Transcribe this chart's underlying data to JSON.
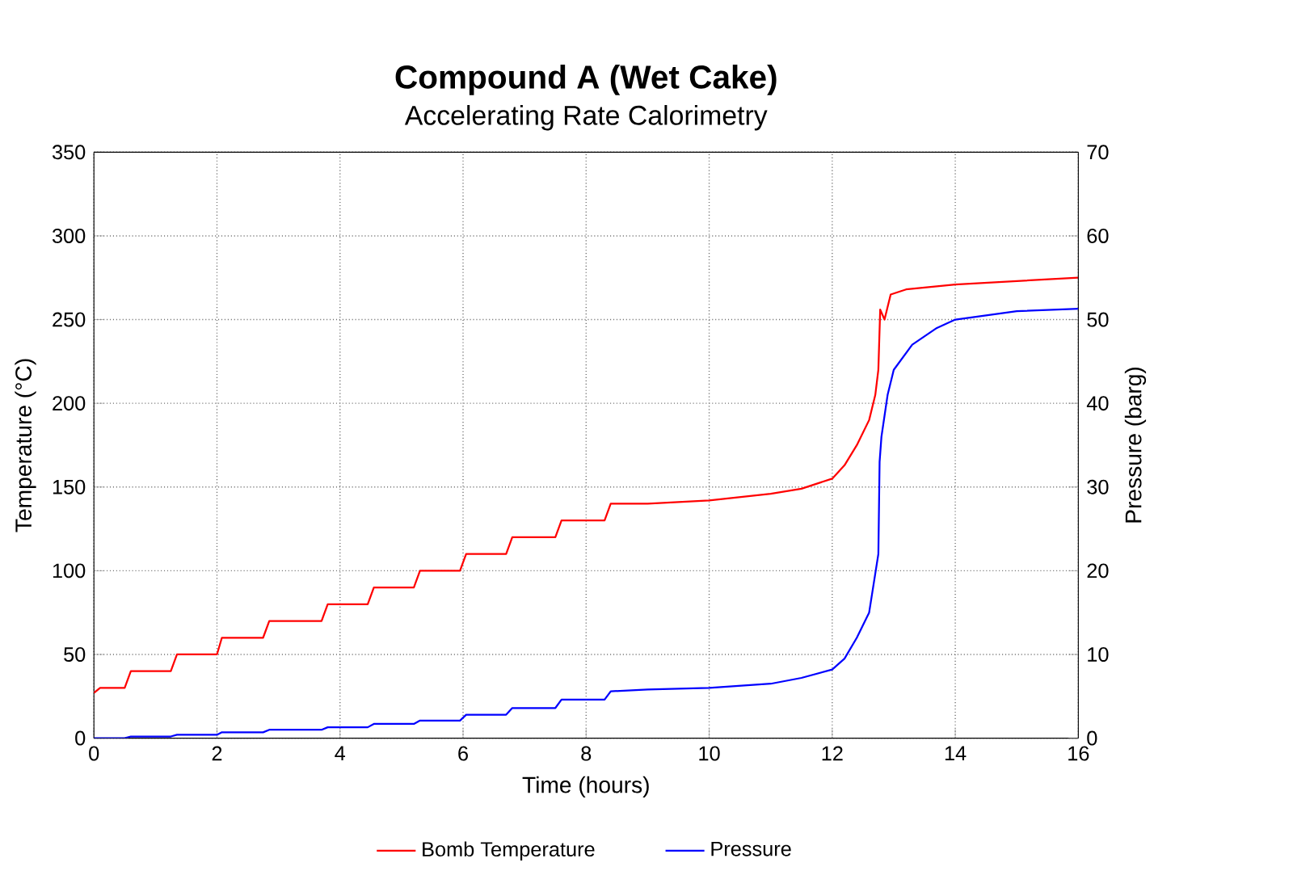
{
  "chart_data": {
    "type": "line",
    "title": "Compound A (Wet Cake)",
    "subtitle": "Accelerating Rate Calorimetry",
    "xlabel": "Time (hours)",
    "ylabel": "Temperature (°C)",
    "y2label": "Pressure (barg)",
    "xlim": [
      0,
      16
    ],
    "xticks": [
      0,
      2,
      4,
      6,
      8,
      10,
      12,
      14,
      16
    ],
    "ylim": [
      0,
      350
    ],
    "yticks": [
      0,
      50,
      100,
      150,
      200,
      250,
      300,
      350
    ],
    "y2lim": [
      0,
      70
    ],
    "y2ticks": [
      0,
      10,
      20,
      30,
      40,
      50,
      60,
      70
    ],
    "grid": true,
    "legend": "bottom",
    "marker": "none",
    "line_style": "solid",
    "series": [
      {
        "name": "Bomb Temperature",
        "color": "#ff0000",
        "x": [
          0,
          0.1,
          0.5,
          0.6,
          1.25,
          1.35,
          2.0,
          2.08,
          2.75,
          2.85,
          3.7,
          3.8,
          4.45,
          4.55,
          5.2,
          5.3,
          5.95,
          6.05,
          6.7,
          6.8,
          7.5,
          7.6,
          8.3,
          8.4,
          9,
          10,
          11,
          11.5,
          12,
          12.2,
          12.4,
          12.6,
          12.7,
          12.75,
          12.78,
          12.85,
          12.95,
          13.2,
          14,
          15,
          16
        ],
        "values": [
          27,
          30,
          30,
          40,
          40,
          50,
          50,
          60,
          60,
          70,
          70,
          80,
          80,
          90,
          90,
          100,
          100,
          110,
          110,
          120,
          120,
          130,
          130,
          140,
          140,
          142,
          146,
          149,
          155,
          163,
          175,
          190,
          205,
          220,
          256,
          250,
          265,
          268,
          271,
          273,
          275
        ]
      },
      {
        "name": "Pressure",
        "color": "#0000ff",
        "axis": "y2",
        "x": [
          0,
          0.5,
          0.6,
          1.25,
          1.35,
          2.0,
          2.08,
          2.75,
          2.85,
          3.7,
          3.8,
          4.45,
          4.55,
          5.2,
          5.3,
          5.95,
          6.05,
          6.7,
          6.8,
          7.5,
          7.6,
          8.3,
          8.4,
          9,
          10,
          11,
          11.5,
          12,
          12.2,
          12.4,
          12.6,
          12.75,
          12.77,
          12.8,
          12.9,
          13,
          13.3,
          13.7,
          14,
          15,
          16
        ],
        "values": [
          0,
          0,
          0.2,
          0.2,
          0.4,
          0.4,
          0.7,
          0.7,
          1.0,
          1.0,
          1.3,
          1.3,
          1.7,
          1.7,
          2.1,
          2.1,
          2.8,
          2.8,
          3.6,
          3.6,
          4.6,
          4.6,
          5.6,
          5.8,
          6,
          6.5,
          7.2,
          8.2,
          9.5,
          12,
          15,
          22,
          33,
          36,
          41,
          44,
          47,
          49,
          50,
          51,
          51.3
        ]
      }
    ]
  }
}
